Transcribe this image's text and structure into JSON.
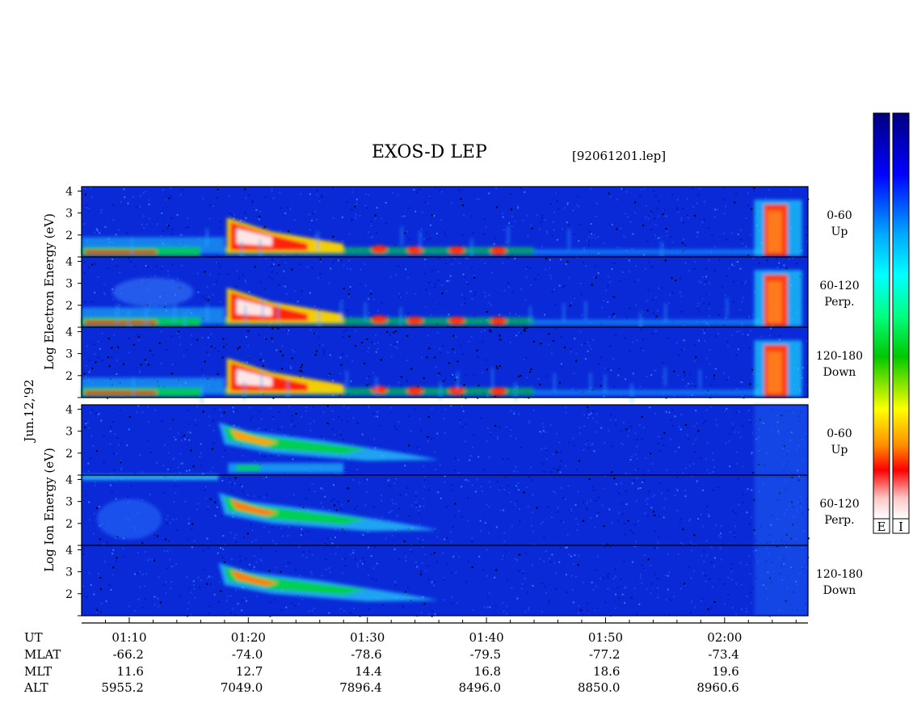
{
  "header": {
    "title": "EXOS-D LEP",
    "file": "[92061201.lep]"
  },
  "date_label": "Jun.12,'92",
  "colorbar": {
    "labels": [
      "E",
      "I"
    ],
    "stops": [
      "#ffffff",
      "#ffc8c8",
      "#ff0000",
      "#ff8c00",
      "#ffff00",
      "#00c800",
      "#00ff80",
      "#00ffff",
      "#00aaff",
      "#0000ff",
      "#000080"
    ]
  },
  "ylabels": {
    "electron": [
      "Log",
      "Electron",
      "Energy",
      "(eV)"
    ],
    "ion": [
      "Log",
      "Ion",
      "Energy",
      "(eV)"
    ]
  },
  "yticks": [
    "1",
    "2",
    "3",
    "4"
  ],
  "panels": [
    {
      "group": "electron",
      "angle": "0-60",
      "dir": "Up"
    },
    {
      "group": "electron",
      "angle": "60-120",
      "dir": "Perp."
    },
    {
      "group": "electron",
      "angle": "120-180",
      "dir": "Down"
    },
    {
      "group": "ion",
      "angle": "0-60",
      "dir": "Up"
    },
    {
      "group": "ion",
      "angle": "60-120",
      "dir": "Perp."
    },
    {
      "group": "ion",
      "angle": "120-180",
      "dir": "Down"
    }
  ],
  "orbit_table": {
    "row_labels": [
      "UT",
      "MLAT",
      "MLT",
      "ALT"
    ],
    "columns": [
      {
        "UT": "01:10",
        "MLAT": "-66.2",
        "MLT": "11.6",
        "ALT": "5955.2"
      },
      {
        "UT": "01:20",
        "MLAT": "-74.0",
        "MLT": "12.7",
        "ALT": "7049.0"
      },
      {
        "UT": "01:30",
        "MLAT": "-78.6",
        "MLT": "14.4",
        "ALT": "7896.4"
      },
      {
        "UT": "01:40",
        "MLAT": "-79.5",
        "MLT": "16.8",
        "ALT": "8496.0"
      },
      {
        "UT": "01:50",
        "MLAT": "-77.2",
        "MLT": "18.6",
        "ALT": "8850.0"
      },
      {
        "UT": "02:00",
        "MLAT": "-73.4",
        "MLT": "19.6",
        "ALT": "8960.6"
      }
    ]
  },
  "chart_data": {
    "type": "heatmap",
    "title": "EXOS-D LEP",
    "xlabel": "UT",
    "ylabel": "Log Energy (eV)",
    "x_range": [
      "01:06",
      "02:07"
    ],
    "ylim": [
      1,
      4.2
    ],
    "x_ticks": [
      "01:10",
      "01:20",
      "01:30",
      "01:40",
      "01:50",
      "02:00"
    ],
    "y_ticks": [
      1,
      2,
      3,
      4
    ],
    "series": [
      {
        "name": "Electron 0-60 Up"
      },
      {
        "name": "Electron 60-120 Perp."
      },
      {
        "name": "Electron 120-180 Down"
      },
      {
        "name": "Ion 0-60 Up"
      },
      {
        "name": "Ion 60-120 Perp."
      },
      {
        "name": "Ion 120-180 Down"
      }
    ]
  }
}
